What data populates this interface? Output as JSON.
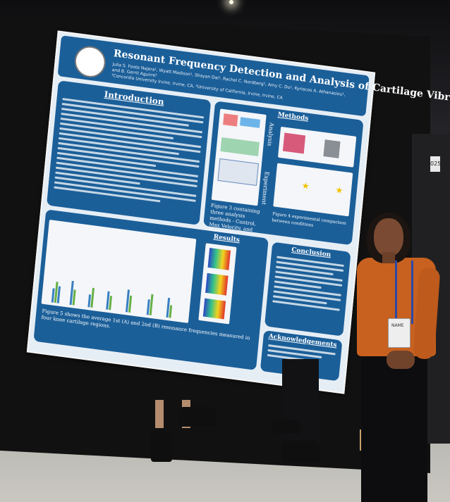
{
  "poster": {
    "title": "Resonant Frequency Detection and Analysis of Cartilage Vibrometry",
    "authors": "Julia S. Foote Najera¹, Wyatt Madison¹, Shayan Dai¹, Rachel C. Nordberg¹, Amy C. Du¹, Kyriacos A. Athanasiou¹, and B. Gerrit Aguirre²",
    "affiliation": "¹Concordia University Irvine, Irvine, CA, ²University of California, Irvine, Irvine, CA",
    "sections": {
      "introduction": "Introduction",
      "methods": "Methods",
      "results": "Results",
      "conclusion": "Conclusion",
      "acknowledgements": "Acknowledgements"
    },
    "figure_captions": {
      "fig3": "Figure 3 containing three analysis methods - Control, Max Velocity, and Surface Fit",
      "fig4": "Figure 4 experimental comparison between conditions",
      "fig5": "Figure 5 shows the average 1st (A) and 2nd (B) resonance frequencies measured in four knee cartilage regions."
    },
    "side_labels": [
      "Analysis",
      "Experiment"
    ]
  },
  "booth": {
    "number": "025"
  },
  "badge": {
    "text": "NAME"
  },
  "colors": {
    "poster_blue": "#1b5f99",
    "shirt": "#c8611f",
    "lanyard": "#2b49a8"
  }
}
